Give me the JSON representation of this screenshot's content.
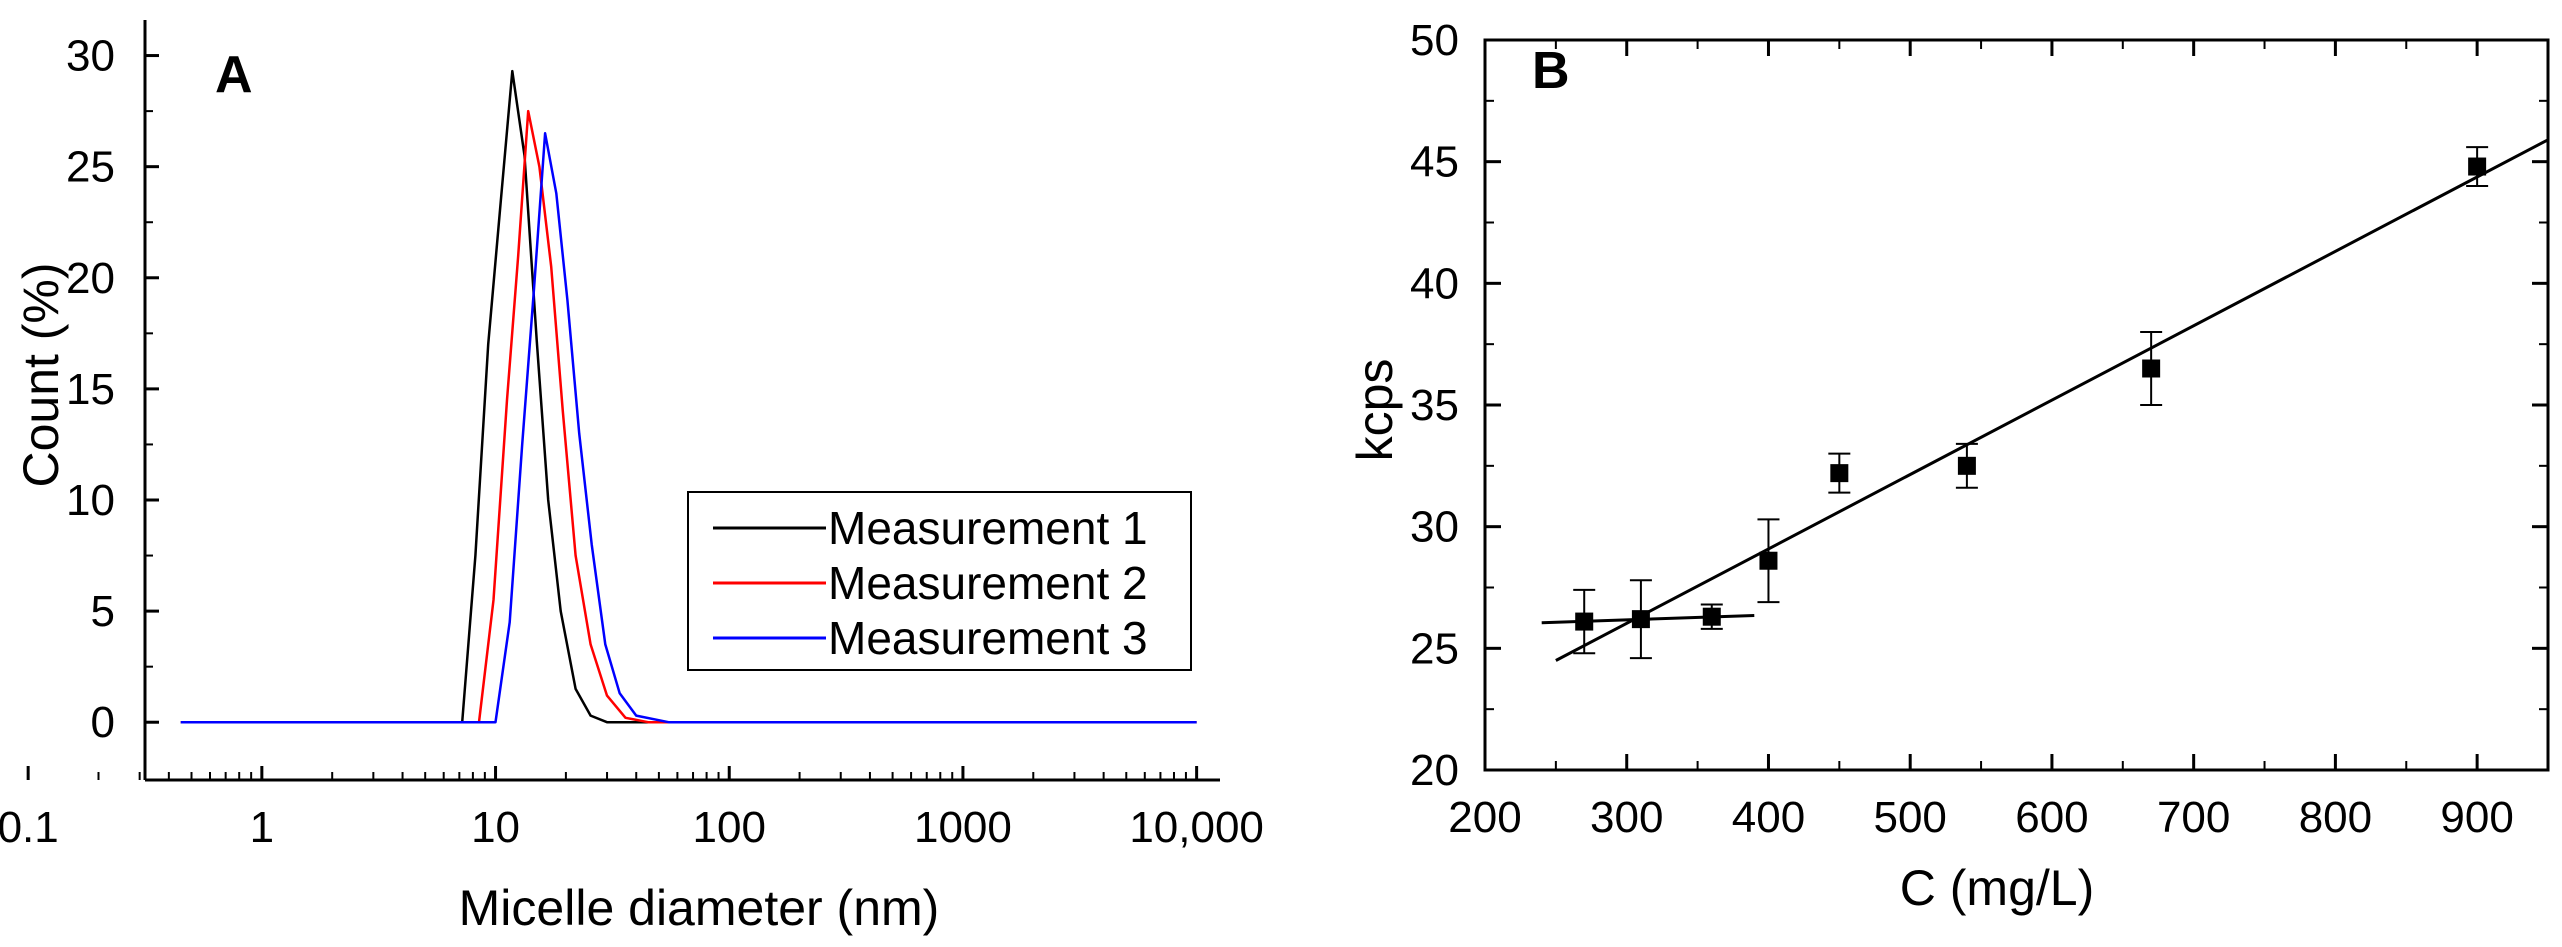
{
  "chart_data": [
    {
      "panel": "A",
      "type": "line",
      "xscale": "log",
      "xlabel": "Micelle diameter (nm)",
      "ylabel": "Count (%)",
      "xlim": [
        0.1,
        10000
      ],
      "ylim": [
        0,
        32
      ],
      "xticks": [
        {
          "value": 0.1,
          "label": "0.1"
        },
        {
          "value": 1,
          "label": "1"
        },
        {
          "value": 10,
          "label": "10"
        },
        {
          "value": 100,
          "label": "100"
        },
        {
          "value": 1000,
          "label": "1000"
        },
        {
          "value": 10000,
          "label": "10,000"
        }
      ],
      "yticks": [
        {
          "value": 0,
          "label": "0"
        },
        {
          "value": 5,
          "label": "5"
        },
        {
          "value": 10,
          "label": "10"
        },
        {
          "value": 15,
          "label": "15"
        },
        {
          "value": 20,
          "label": "20"
        },
        {
          "value": 25,
          "label": "25"
        },
        {
          "value": 30,
          "label": "30"
        }
      ],
      "legend_position": "center-right",
      "series": [
        {
          "name": "Measurement 1",
          "color": "#000000",
          "x": [
            0.45,
            7.2,
            8.2,
            9.3,
            10.5,
            11.8,
            13.3,
            15.0,
            16.8,
            19.0,
            22.0,
            25.5,
            30.0,
            40.0,
            10000
          ],
          "y": [
            0,
            0,
            7.5,
            17,
            23.3,
            29.3,
            25.5,
            17.2,
            10,
            5,
            1.5,
            0.3,
            0,
            0,
            0
          ]
        },
        {
          "name": "Measurement 2",
          "color": "#ff0000",
          "x": [
            0.45,
            8.5,
            9.8,
            11.2,
            12.5,
            13.8,
            15.4,
            17.3,
            19.4,
            22.0,
            25.5,
            30.0,
            36.0,
            45.0,
            10000
          ],
          "y": [
            0,
            0,
            5.5,
            14.5,
            21,
            27.5,
            25,
            20.5,
            14,
            7.5,
            3.5,
            1.2,
            0.2,
            0,
            0
          ]
        },
        {
          "name": "Measurement 3",
          "color": "#0000ff",
          "x": [
            0.45,
            10.0,
            11.5,
            13.0,
            14.6,
            16.3,
            18.2,
            20.3,
            22.8,
            25.8,
            29.5,
            34.0,
            40.0,
            55.0,
            10000
          ],
          "y": [
            0,
            0,
            4.5,
            12.5,
            19.5,
            26.5,
            23.8,
            19,
            13,
            8,
            3.5,
            1.3,
            0.3,
            0,
            0
          ]
        }
      ]
    },
    {
      "panel": "B",
      "type": "scatter",
      "xlabel": "C (mg/L)",
      "ylabel": "kcps",
      "xlim": [
        200,
        950
      ],
      "ylim": [
        20,
        50
      ],
      "xticks": [
        {
          "value": 200,
          "label": "200"
        },
        {
          "value": 300,
          "label": "300"
        },
        {
          "value": 400,
          "label": "400"
        },
        {
          "value": 500,
          "label": "500"
        },
        {
          "value": 600,
          "label": "600"
        },
        {
          "value": 700,
          "label": "700"
        },
        {
          "value": 800,
          "label": "800"
        },
        {
          "value": 900,
          "label": "900"
        }
      ],
      "yticks": [
        {
          "value": 20,
          "label": "20"
        },
        {
          "value": 25,
          "label": "25"
        },
        {
          "value": 30,
          "label": "30"
        },
        {
          "value": 35,
          "label": "35"
        },
        {
          "value": 40,
          "label": "40"
        },
        {
          "value": 45,
          "label": "45"
        },
        {
          "value": 50,
          "label": "50"
        }
      ],
      "points": [
        {
          "x": 270,
          "y": 26.1,
          "err": 1.3
        },
        {
          "x": 310,
          "y": 26.2,
          "err": 1.6
        },
        {
          "x": 360,
          "y": 26.3,
          "err": 0.5
        },
        {
          "x": 400,
          "y": 28.6,
          "err": 1.7
        },
        {
          "x": 450,
          "y": 32.2,
          "err": 0.8
        },
        {
          "x": 540,
          "y": 32.5,
          "err": 0.9
        },
        {
          "x": 670,
          "y": 36.5,
          "err": 1.5
        },
        {
          "x": 900,
          "y": 44.8,
          "err": 0.8
        }
      ],
      "fit_lines": [
        {
          "name": "baseline fit",
          "x": [
            240,
            390
          ],
          "y": [
            26.05,
            26.35
          ]
        },
        {
          "name": "linear fit",
          "x": [
            250,
            950
          ],
          "y": [
            24.5,
            45.9
          ]
        }
      ]
    }
  ]
}
